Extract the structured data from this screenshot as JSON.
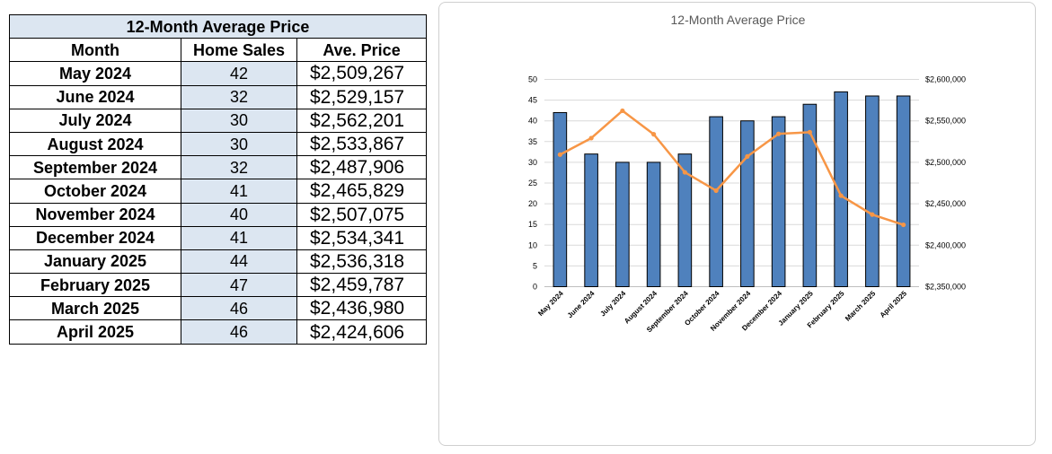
{
  "table": {
    "title": "12-Month Average Price",
    "headers": [
      "Month",
      "Home Sales",
      "Ave. Price"
    ],
    "rows": [
      {
        "month": "May 2024",
        "sales": "42",
        "price": "$2,509,267"
      },
      {
        "month": "June 2024",
        "sales": "32",
        "price": "$2,529,157"
      },
      {
        "month": "July 2024",
        "sales": "30",
        "price": "$2,562,201"
      },
      {
        "month": "August 2024",
        "sales": "30",
        "price": "$2,533,867"
      },
      {
        "month": "September 2024",
        "sales": "32",
        "price": "$2,487,906"
      },
      {
        "month": "October 2024",
        "sales": "41",
        "price": "$2,465,829"
      },
      {
        "month": "November 2024",
        "sales": "40",
        "price": "$2,507,075"
      },
      {
        "month": "December 2024",
        "sales": "41",
        "price": "$2,534,341"
      },
      {
        "month": "January 2025",
        "sales": "44",
        "price": "$2,536,318"
      },
      {
        "month": "February 2025",
        "sales": "47",
        "price": "$2,459,787"
      },
      {
        "month": "March 2025",
        "sales": "46",
        "price": "$2,436,980"
      },
      {
        "month": "April 2025",
        "sales": "46",
        "price": "$2,424,606"
      }
    ]
  },
  "chart_data": {
    "type": "bar",
    "title": "12-Month Average Price",
    "categories": [
      "May 2024",
      "June 2024",
      "July 2024",
      "August 2024",
      "September 2024",
      "October 2024",
      "November 2024",
      "December 2024",
      "January 2025",
      "February 2025",
      "March 2025",
      "April 2025"
    ],
    "series": [
      {
        "type": "bar",
        "axis": "left",
        "values": [
          42,
          32,
          30,
          30,
          32,
          41,
          40,
          41,
          44,
          47,
          46,
          46
        ],
        "color": "#4f81bd"
      },
      {
        "type": "line",
        "axis": "right",
        "values": [
          2509267,
          2529157,
          2562201,
          2533867,
          2487906,
          2465829,
          2507075,
          2534341,
          2536318,
          2459787,
          2436980,
          2424606
        ],
        "color": "#f79646"
      }
    ],
    "ylim_left": [
      0,
      50
    ],
    "yticks_left": [
      "0",
      "5",
      "10",
      "15",
      "20",
      "25",
      "30",
      "35",
      "40",
      "45",
      "50"
    ],
    "ylim_right": [
      2350000,
      2600000
    ],
    "yticks_right": [
      "$2,350,000",
      "$2,400,000",
      "$2,450,000",
      "$2,500,000",
      "$2,550,000",
      "$2,600,000"
    ],
    "grid": true,
    "legend": "none"
  }
}
